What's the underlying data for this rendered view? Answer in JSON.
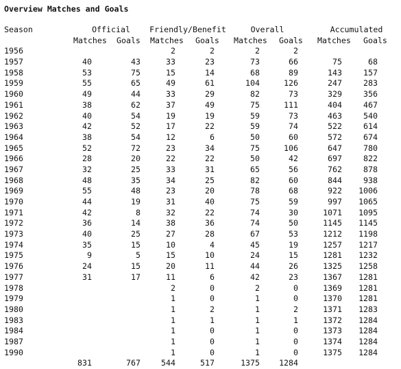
{
  "title": "Overview Matches and Goals",
  "headers": {
    "season": "Season",
    "official": "Official",
    "friendly": "Friendly/Benefit",
    "overall": "Overall",
    "accumulated": "Accumulated",
    "sub": [
      "Matches",
      "Goals",
      "Matches",
      "Goals",
      "Matches",
      "Goals",
      "Matches",
      "Goals"
    ]
  },
  "rows": [
    [
      "1956",
      "",
      "",
      "2",
      "2",
      "2",
      "2",
      "",
      ""
    ],
    [
      "1957",
      "40",
      "43",
      "33",
      "23",
      "73",
      "66",
      "75",
      "68"
    ],
    [
      "1958",
      "53",
      "75",
      "15",
      "14",
      "68",
      "89",
      "143",
      "157"
    ],
    [
      "1959",
      "55",
      "65",
      "49",
      "61",
      "104",
      "126",
      "247",
      "283"
    ],
    [
      "1960",
      "49",
      "44",
      "33",
      "29",
      "82",
      "73",
      "329",
      "356"
    ],
    [
      "1961",
      "38",
      "62",
      "37",
      "49",
      "75",
      "111",
      "404",
      "467"
    ],
    [
      "1962",
      "40",
      "54",
      "19",
      "19",
      "59",
      "73",
      "463",
      "540"
    ],
    [
      "1963",
      "42",
      "52",
      "17",
      "22",
      "59",
      "74",
      "522",
      "614"
    ],
    [
      "1964",
      "38",
      "54",
      "12",
      "6",
      "50",
      "60",
      "572",
      "674"
    ],
    [
      "1965",
      "52",
      "72",
      "23",
      "34",
      "75",
      "106",
      "647",
      "780"
    ],
    [
      "1966",
      "28",
      "20",
      "22",
      "22",
      "50",
      "42",
      "697",
      "822"
    ],
    [
      "1967",
      "32",
      "25",
      "33",
      "31",
      "65",
      "56",
      "762",
      "878"
    ],
    [
      "1968",
      "48",
      "35",
      "34",
      "25",
      "82",
      "60",
      "844",
      "938"
    ],
    [
      "1969",
      "55",
      "48",
      "23",
      "20",
      "78",
      "68",
      "922",
      "1006"
    ],
    [
      "1970",
      "44",
      "19",
      "31",
      "40",
      "75",
      "59",
      "997",
      "1065"
    ],
    [
      "1971",
      "42",
      "8",
      "32",
      "22",
      "74",
      "30",
      "1071",
      "1095"
    ],
    [
      "1972",
      "36",
      "14",
      "38",
      "36",
      "74",
      "50",
      "1145",
      "1145"
    ],
    [
      "1973",
      "40",
      "25",
      "27",
      "28",
      "67",
      "53",
      "1212",
      "1198"
    ],
    [
      "1974",
      "35",
      "15",
      "10",
      "4",
      "45",
      "19",
      "1257",
      "1217"
    ],
    [
      "1975",
      "9",
      "5",
      "15",
      "10",
      "24",
      "15",
      "1281",
      "1232"
    ],
    [
      "1976",
      "24",
      "15",
      "20",
      "11",
      "44",
      "26",
      "1325",
      "1258"
    ],
    [
      "1977",
      "31",
      "17",
      "11",
      "6",
      "42",
      "23",
      "1367",
      "1281"
    ],
    [
      "1978",
      "",
      "",
      "2",
      "0",
      "2",
      "0",
      "1369",
      "1281"
    ],
    [
      "1979",
      "",
      "",
      "1",
      "0",
      "1",
      "0",
      "1370",
      "1281"
    ],
    [
      "1980",
      "",
      "",
      "1",
      "2",
      "1",
      "2",
      "1371",
      "1283"
    ],
    [
      "1983",
      "",
      "",
      "1",
      "1",
      "1",
      "1",
      "1372",
      "1284"
    ],
    [
      "1984",
      "",
      "",
      "1",
      "0",
      "1",
      "0",
      "1373",
      "1284"
    ],
    [
      "1987",
      "",
      "",
      "1",
      "0",
      "1",
      "0",
      "1374",
      "1284"
    ],
    [
      "1990",
      "",
      "",
      "1",
      "0",
      "1",
      "0",
      "1375",
      "1284"
    ]
  ],
  "totals": [
    "",
    "831",
    "767",
    "544",
    "517",
    "1375",
    "1284",
    "",
    ""
  ]
}
